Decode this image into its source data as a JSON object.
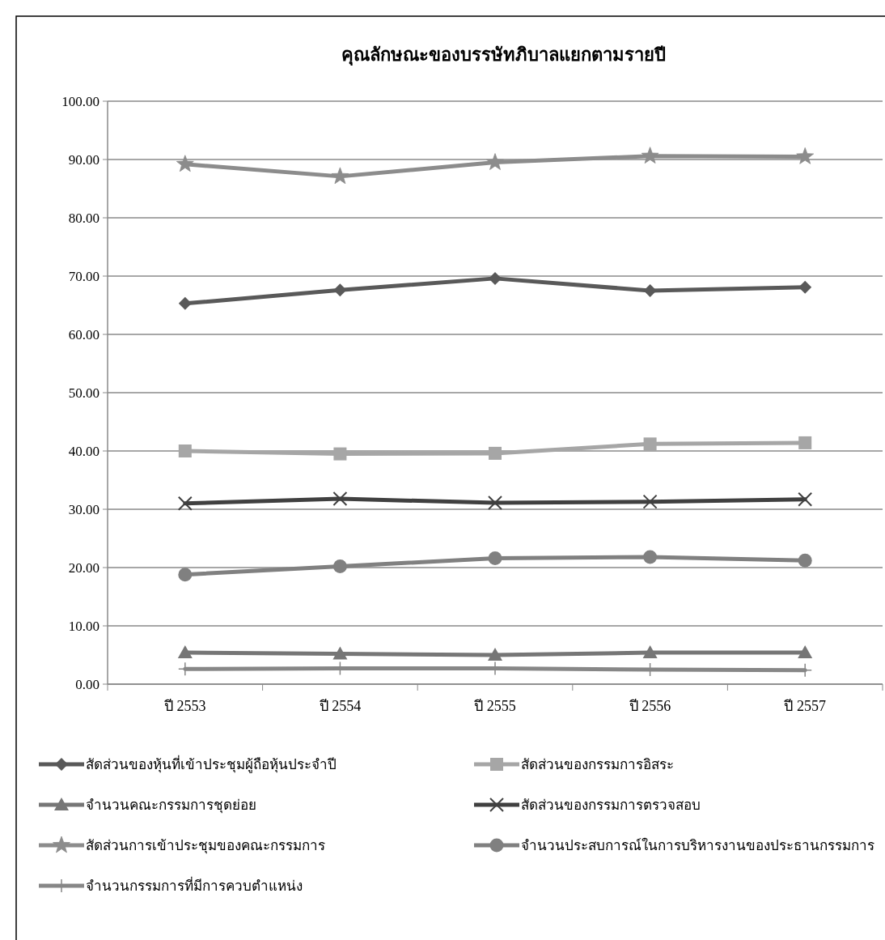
{
  "chart_data": {
    "type": "line",
    "title": "คุณลักษณะของบรรษัทภิบาลแยกตามรายปี",
    "categories": [
      "ปี 2553",
      "ปี 2554",
      "ปี 2555",
      "ปี 2556",
      "ปี 2557"
    ],
    "ylim": [
      0,
      100
    ],
    "yticks": [
      {
        "value": 0,
        "label": "0.00"
      },
      {
        "value": 10,
        "label": "10.00"
      },
      {
        "value": 20,
        "label": "20.00"
      },
      {
        "value": 30,
        "label": "30.00"
      },
      {
        "value": 40,
        "label": "40.00"
      },
      {
        "value": 50,
        "label": "50.00"
      },
      {
        "value": 60,
        "label": "60.00"
      },
      {
        "value": 70,
        "label": "70.00"
      },
      {
        "value": 80,
        "label": "80.00"
      },
      {
        "value": 90,
        "label": "90.00"
      },
      {
        "value": 100,
        "label": "100.00"
      }
    ],
    "grid": "y",
    "legend": "bottom",
    "line_style": "solid",
    "series": [
      {
        "name": "สัดส่วนของหุ้นที่เข้าประชุมผู้ถือหุ้นประจำปี",
        "color": "#595959",
        "marker": "diamond",
        "values": [
          65.3,
          67.6,
          69.6,
          67.5,
          68.1
        ]
      },
      {
        "name": "สัดส่วนของกรรมการอิสระ",
        "color": "#a6a6a6",
        "marker": "square",
        "values": [
          40.0,
          39.5,
          39.6,
          41.2,
          41.4
        ]
      },
      {
        "name": "จำนวนคณะกรรมการชุดย่อย",
        "color": "#767676",
        "marker": "triangle",
        "values": [
          5.4,
          5.2,
          5.0,
          5.4,
          5.4
        ]
      },
      {
        "name": "สัดส่วนของกรรมการตรวจสอบ",
        "color": "#404040",
        "marker": "cross",
        "values": [
          31.0,
          31.8,
          31.1,
          31.3,
          31.7
        ]
      },
      {
        "name": "สัดส่วนการเข้าประชุมของคณะกรรมการ",
        "color": "#8c8c8c",
        "marker": "star",
        "values": [
          89.2,
          87.1,
          89.5,
          90.6,
          90.5
        ]
      },
      {
        "name": "จำนวนประสบการณ์ในการบริหารงานของประธานกรรมการ",
        "color": "#808080",
        "marker": "circle",
        "values": [
          18.8,
          20.2,
          21.6,
          21.8,
          21.2
        ]
      },
      {
        "name": "จำนวนกรรมการที่มีการควบตำแหน่ง",
        "color": "#878787",
        "marker": "plus",
        "values": [
          2.6,
          2.7,
          2.7,
          2.5,
          2.4
        ]
      }
    ]
  }
}
